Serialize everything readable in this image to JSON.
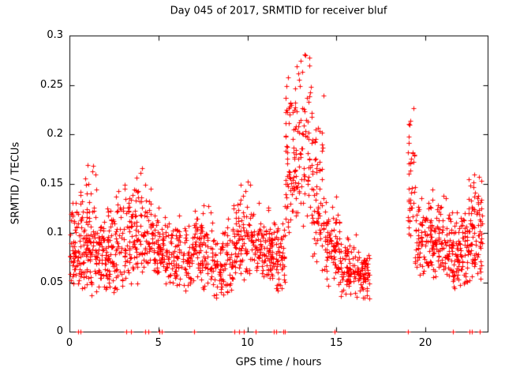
{
  "title": "Day 045 of 2017, SRMTID for receiver bluf",
  "chart_data": {
    "type": "scatter",
    "title": "Day 045 of 2017, SRMTID for receiver bluf",
    "xlabel": "GPS time / hours",
    "ylabel": "SRMTID / TECUs",
    "xlim": [
      0,
      23.5
    ],
    "ylim": [
      0,
      0.3
    ],
    "xtick_values": [
      0,
      5,
      10,
      15,
      20
    ],
    "xtick_labels": [
      "0",
      "5",
      "10",
      "15",
      "20"
    ],
    "ytick_values": [
      0,
      0.05,
      0.1,
      0.15,
      0.2,
      0.25,
      0.3
    ],
    "ytick_labels": [
      "0",
      "0.05",
      "0.1",
      "0.15",
      "0.2",
      "0.25",
      "0.3"
    ],
    "grid": false,
    "legend": "none",
    "marker": "plus",
    "marker_color": "#ff0000",
    "data_gap_hours": [
      17.0,
      19.0
    ],
    "clusters": [
      {
        "t0": 0.05,
        "t1": 0.6,
        "n": 60,
        "ymin": 0.04,
        "ymode": 0.07,
        "ymax": 0.145
      },
      {
        "t0": 0.6,
        "t1": 1.5,
        "n": 110,
        "ymin": 0.03,
        "ymode": 0.08,
        "ymax": 0.175
      },
      {
        "t0": 1.5,
        "t1": 2.6,
        "n": 110,
        "ymin": 0.035,
        "ymode": 0.07,
        "ymax": 0.13
      },
      {
        "t0": 2.6,
        "t1": 3.6,
        "n": 90,
        "ymin": 0.04,
        "ymode": 0.075,
        "ymax": 0.155
      },
      {
        "t0": 3.6,
        "t1": 4.6,
        "n": 90,
        "ymin": 0.045,
        "ymode": 0.08,
        "ymax": 0.17
      },
      {
        "t0": 4.6,
        "t1": 5.4,
        "n": 70,
        "ymin": 0.05,
        "ymode": 0.08,
        "ymax": 0.13
      },
      {
        "t0": 5.4,
        "t1": 7.0,
        "n": 130,
        "ymin": 0.04,
        "ymode": 0.07,
        "ymax": 0.12
      },
      {
        "t0": 7.0,
        "t1": 8.2,
        "n": 100,
        "ymin": 0.035,
        "ymode": 0.07,
        "ymax": 0.135
      },
      {
        "t0": 8.2,
        "t1": 9.2,
        "n": 80,
        "ymin": 0.03,
        "ymode": 0.065,
        "ymax": 0.12
      },
      {
        "t0": 9.2,
        "t1": 10.2,
        "n": 90,
        "ymin": 0.05,
        "ymode": 0.08,
        "ymax": 0.155
      },
      {
        "t0": 10.2,
        "t1": 11.3,
        "n": 100,
        "ymin": 0.045,
        "ymode": 0.08,
        "ymax": 0.135
      },
      {
        "t0": 11.3,
        "t1": 12.1,
        "n": 80,
        "ymin": 0.04,
        "ymode": 0.075,
        "ymax": 0.12
      },
      {
        "t0": 12.1,
        "t1": 12.7,
        "n": 70,
        "ymin": 0.08,
        "ymode": 0.15,
        "ymax": 0.275
      },
      {
        "t0": 12.7,
        "t1": 13.6,
        "n": 80,
        "ymin": 0.1,
        "ymode": 0.16,
        "ymax": 0.29
      },
      {
        "t0": 13.6,
        "t1": 14.3,
        "n": 70,
        "ymin": 0.06,
        "ymode": 0.11,
        "ymax": 0.245
      },
      {
        "t0": 14.3,
        "t1": 15.2,
        "n": 80,
        "ymin": 0.04,
        "ymode": 0.08,
        "ymax": 0.145
      },
      {
        "t0": 15.2,
        "t1": 16.2,
        "n": 80,
        "ymin": 0.03,
        "ymode": 0.06,
        "ymax": 0.1
      },
      {
        "t0": 16.2,
        "t1": 16.9,
        "n": 60,
        "ymin": 0.03,
        "ymode": 0.06,
        "ymax": 0.085
      },
      {
        "t0": 19.0,
        "t1": 19.4,
        "n": 40,
        "ymin": 0.08,
        "ymode": 0.12,
        "ymax": 0.245
      },
      {
        "t0": 19.4,
        "t1": 20.4,
        "n": 90,
        "ymin": 0.05,
        "ymode": 0.09,
        "ymax": 0.155
      },
      {
        "t0": 20.4,
        "t1": 21.5,
        "n": 100,
        "ymin": 0.05,
        "ymode": 0.085,
        "ymax": 0.14
      },
      {
        "t0": 21.5,
        "t1": 22.4,
        "n": 90,
        "ymin": 0.035,
        "ymode": 0.08,
        "ymax": 0.13
      },
      {
        "t0": 22.4,
        "t1": 23.2,
        "n": 90,
        "ymin": 0.05,
        "ymode": 0.09,
        "ymax": 0.17
      }
    ],
    "baseline_marker_x": [
      0.5,
      0.62,
      3.2,
      3.45,
      4.25,
      4.45,
      5.05,
      5.2,
      7.0,
      9.25,
      9.55,
      9.8,
      10.45,
      11.5,
      11.62,
      12.0,
      12.1,
      14.9,
      19.0,
      21.55,
      22.5,
      22.62,
      23.05
    ]
  }
}
